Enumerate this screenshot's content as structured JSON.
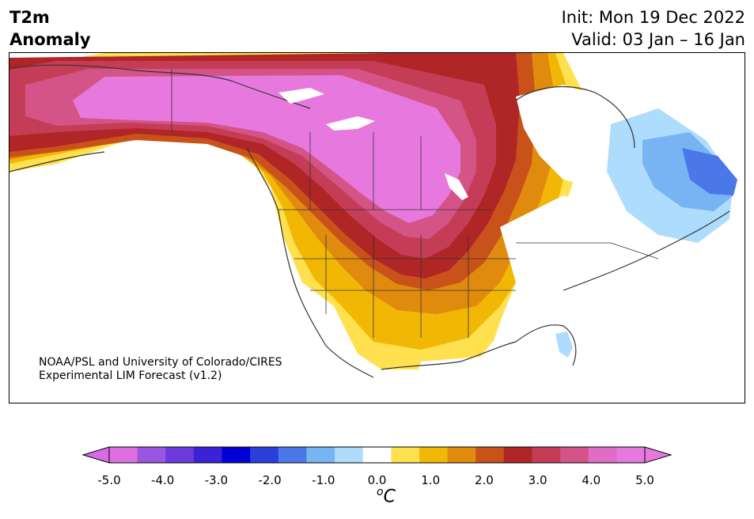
{
  "title": {
    "variable": "T2m",
    "subtitle": "Anomaly",
    "init": "Init: Mon 19 Dec 2022",
    "valid": "Valid: 03 Jan – 16 Jan"
  },
  "credit": {
    "line1": "NOAA/PSL and University of Colorado/CIRES",
    "line2": "Experimental LIM Forecast (v1.2)"
  },
  "colorbar": {
    "unit_sup": "o",
    "unit_base": "C",
    "ticks": [
      "-5.0",
      "-4.0",
      "-3.0",
      "-2.0",
      "-1.0",
      "0.0",
      "1.0",
      "2.0",
      "3.0",
      "4.0",
      "5.0"
    ],
    "colors": [
      "#df6ee0",
      "#9a55e1",
      "#6b3bdb",
      "#3b22d6",
      "#0000d6",
      "#2a3edc",
      "#4a78e8",
      "#78b4f4",
      "#aedcfc",
      "#ffffff",
      "#ffe04e",
      "#f2b705",
      "#e08a0e",
      "#c8521a",
      "#b02626",
      "#c53c56",
      "#d45487",
      "#e06cc8",
      "#e779de"
    ],
    "under_color": "#d86ce6",
    "over_color": "#e779de"
  },
  "map": {
    "region": "North America",
    "colors": {
      "ocean": "#ffffff",
      "outline": "#333333",
      "magenta": "#e779de",
      "pink": "#d45487",
      "rose": "#c53c56",
      "red": "#b02626",
      "rust": "#c8521a",
      "orange": "#e08a0e",
      "gold": "#f2b705",
      "yellow": "#ffe04e",
      "pale_blue": "#aedcfc",
      "light_blue": "#78b4f4",
      "mid_blue": "#4a78e8"
    }
  }
}
